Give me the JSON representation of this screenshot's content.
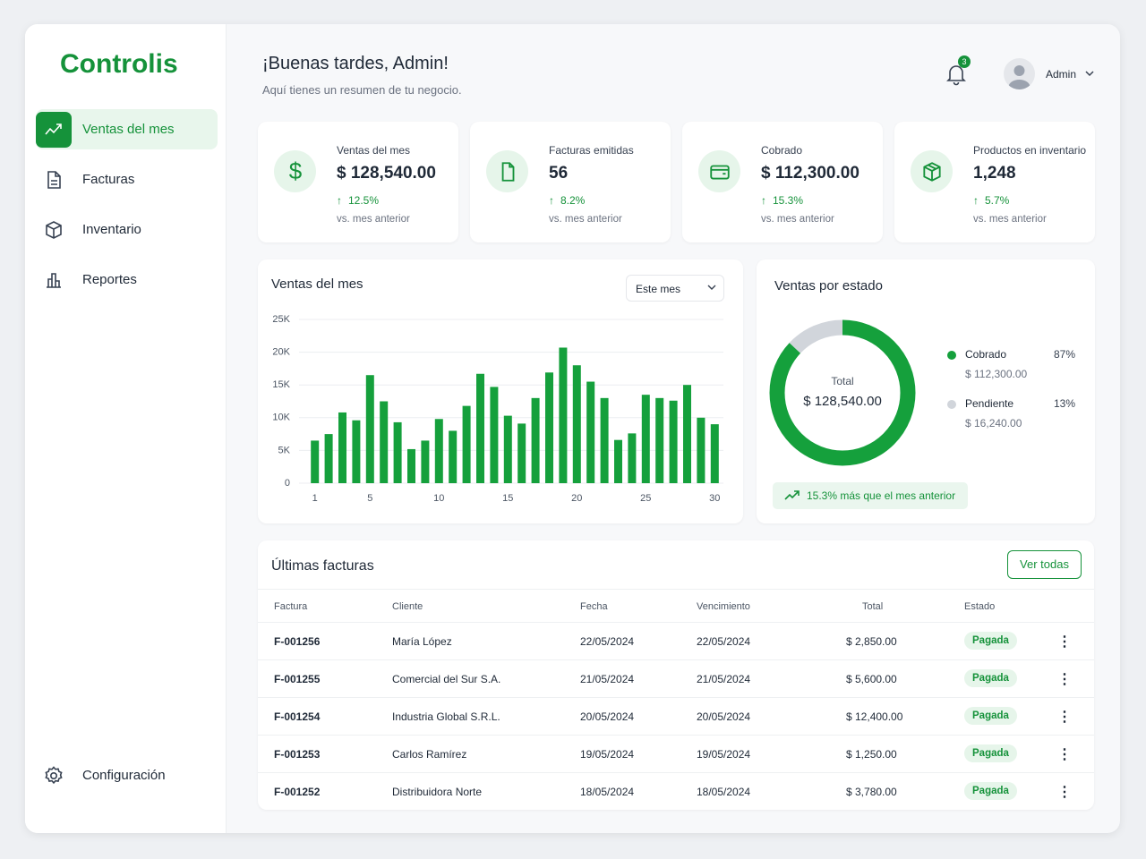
{
  "brand": "Controlis",
  "nav": [
    {
      "label": "Ventas del mes",
      "active": true
    },
    {
      "label": "Facturas",
      "active": false
    },
    {
      "label": "Inventario",
      "active": false
    },
    {
      "label": "Reportes",
      "active": false
    }
  ],
  "settings_label": "Configuración",
  "header": {
    "greeting": "¡Buenas tardes, Admin!",
    "subtitle": "Aquí tienes un resumen de tu negocio.",
    "notifications": "3",
    "user": "Admin"
  },
  "stats": [
    {
      "label": "Ventas del mes",
      "value": "$ 128,540.00",
      "change": "12.5%",
      "note": "vs. mes anterior"
    },
    {
      "label": "Facturas emitidas",
      "value": "56",
      "change": "8.2%",
      "note": "vs. mes anterior"
    },
    {
      "label": "Cobrado",
      "value": "$ 112,300.00",
      "change": "15.3%",
      "note": "vs. mes anterior"
    },
    {
      "label": "Productos en inventario",
      "value": "1,248",
      "change": "5.7%",
      "note": "vs. mes anterior"
    }
  ],
  "chart_data": [
    {
      "type": "bar",
      "title": "Ventas del mes",
      "filter": "Este mes",
      "color": "#15a03c",
      "grid": true,
      "categories": [
        "1",
        null,
        null,
        null,
        "5",
        null,
        null,
        null,
        null,
        "10",
        null,
        null,
        null,
        null,
        "15",
        null,
        null,
        null,
        null,
        "20",
        null,
        null,
        null,
        null,
        "25",
        null,
        null,
        null,
        null,
        "30"
      ],
      "values": [
        6500,
        7500,
        10800,
        9600,
        16500,
        12500,
        9300,
        5200,
        6500,
        9800,
        8000,
        11800,
        16700,
        14700,
        10300,
        9100,
        13000,
        16900,
        20700,
        18000,
        15500,
        13000,
        6600,
        7600,
        13500,
        13000,
        12600,
        15000,
        10000,
        9000
      ],
      "ylim": [
        0,
        25000
      ],
      "yticks": [
        0,
        {
          "value": 5000,
          "label": "5K"
        },
        {
          "value": 10000,
          "label": "10K"
        },
        {
          "value": 15000,
          "label": "15K"
        },
        {
          "value": 20000,
          "label": "20K"
        },
        {
          "value": 25000,
          "label": "25K"
        }
      ]
    },
    {
      "type": "pie",
      "title": "Ventas por estado",
      "center_label": "Total",
      "center_value": "$ 128,540.00",
      "categories": [
        "Cobrado",
        "Pendiente"
      ],
      "values": [
        87,
        13
      ],
      "value_labels": [
        "87%",
        "13%"
      ],
      "amounts": [
        "$ 112,300.00",
        "$ 16,240.00"
      ],
      "colors": [
        "#15a03c",
        "#d1d5db"
      ],
      "footnote": "15.3% más que el mes anterior"
    }
  ],
  "invoices": {
    "title": "Últimas facturas",
    "button": "Ver todas",
    "columns": [
      "Factura",
      "Cliente",
      "Fecha",
      "Vencimiento",
      "Total",
      "Estado"
    ],
    "rows": [
      [
        "F-001256",
        "María López",
        "22/05/2024",
        "22/05/2024",
        "$ 2,850.00",
        "Pagada"
      ],
      [
        "F-001255",
        "Comercial del Sur S.A.",
        "21/05/2024",
        "21/05/2024",
        "$ 5,600.00",
        "Pagada"
      ],
      [
        "F-001254",
        "Industria Global S.R.L.",
        "20/05/2024",
        "20/05/2024",
        "$ 12,400.00",
        "Pagada"
      ],
      [
        "F-001253",
        "Carlos Ramírez",
        "19/05/2024",
        "19/05/2024",
        "$ 1,250.00",
        "Pagada"
      ],
      [
        "F-001252",
        "Distribuidora Norte",
        "18/05/2024",
        "18/05/2024",
        "$ 3,780.00",
        "Pagada"
      ]
    ]
  }
}
